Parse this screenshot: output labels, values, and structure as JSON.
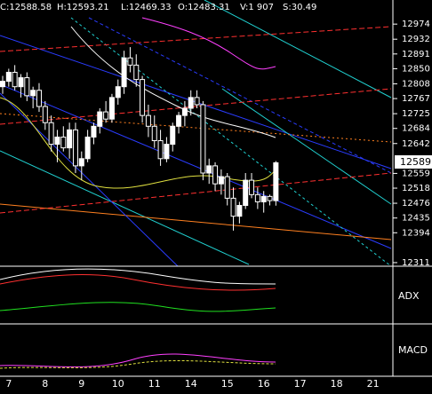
{
  "chart_data": {
    "type": "candlestick",
    "header": [
      "C:12588.58",
      "H:12593.21",
      "L:12469.33",
      "O:12483.31",
      "V:1 907",
      "S:30.49"
    ],
    "last_label": "12589",
    "panels": [
      "ADX",
      "MACD"
    ],
    "categories": [
      null,
      "7",
      null,
      null,
      null,
      null,
      null,
      "8",
      null,
      null,
      null,
      null,
      null,
      "9",
      null,
      null,
      null,
      null,
      null,
      "10",
      null,
      null,
      null,
      null,
      null,
      "11",
      null,
      null,
      null,
      null,
      null,
      "14",
      null,
      null,
      null,
      null,
      null,
      "15",
      null,
      null,
      null,
      null,
      null,
      "16",
      null,
      null,
      null,
      null,
      null,
      "17",
      null,
      null,
      null,
      null,
      null,
      "18",
      null,
      null,
      null,
      null,
      null,
      "21",
      null
    ],
    "open": [
      12800,
      12815,
      12840,
      12800,
      12825,
      12775,
      12790,
      12745,
      12700,
      12640,
      12660,
      12630,
      12680,
      12580,
      12600,
      12660,
      12690,
      12730,
      12710,
      12770,
      12800,
      12880,
      12860,
      12820,
      12720,
      12690,
      12650,
      12600,
      12640,
      12690,
      12720,
      12740,
      12770,
      12750,
      12560,
      12580,
      12530,
      12550,
      12490,
      12440,
      12470,
      12540,
      12500,
      12480,
      12495,
      12483.31,
      null,
      null,
      null,
      null,
      null,
      null,
      null,
      null,
      null,
      null,
      null,
      null,
      null,
      null,
      null,
      null,
      null
    ],
    "high": [
      12830,
      12850,
      12860,
      12835,
      12840,
      12800,
      12810,
      12760,
      12720,
      12680,
      12690,
      12700,
      12700,
      12620,
      12680,
      12700,
      12740,
      12760,
      12780,
      12820,
      12900,
      12910,
      12890,
      12830,
      12750,
      12720,
      12680,
      12660,
      12700,
      12730,
      12760,
      12790,
      12790,
      12760,
      12600,
      12590,
      12570,
      12560,
      12520,
      12480,
      12560,
      12560,
      12520,
      12510,
      12500,
      12593.21,
      null,
      null,
      null,
      null,
      null,
      null,
      null,
      null,
      null,
      null,
      null,
      null,
      null,
      null,
      null,
      null,
      null
    ],
    "low": [
      12780,
      12800,
      12790,
      12770,
      12760,
      12740,
      12730,
      12680,
      12620,
      12590,
      12620,
      12600,
      12560,
      12540,
      12590,
      12640,
      12670,
      12700,
      12700,
      12750,
      12780,
      12840,
      12800,
      12700,
      12660,
      12630,
      12580,
      12590,
      12620,
      12670,
      12690,
      12720,
      12740,
      12540,
      12530,
      12510,
      12500,
      12470,
      12400,
      12420,
      12460,
      12490,
      12460,
      12450,
      12470,
      12469.33,
      null,
      null,
      null,
      null,
      null,
      null,
      null,
      null,
      null,
      null,
      null,
      null,
      null,
      null,
      null,
      null,
      null
    ],
    "close": [
      12815,
      12840,
      12800,
      12825,
      12775,
      12790,
      12745,
      12700,
      12640,
      12660,
      12630,
      12680,
      12580,
      12600,
      12660,
      12690,
      12730,
      12710,
      12770,
      12800,
      12880,
      12860,
      12820,
      12720,
      12690,
      12650,
      12600,
      12640,
      12690,
      12720,
      12740,
      12770,
      12750,
      12560,
      12580,
      12530,
      12550,
      12490,
      12440,
      12470,
      12540,
      12500,
      12480,
      12495,
      12483.31,
      12588.58,
      null,
      null,
      null,
      null,
      null,
      null,
      null,
      null,
      null,
      null,
      null,
      null,
      null,
      null,
      null,
      null,
      null
    ],
    "ylim": [
      12301,
      13041
    ],
    "yticks": [
      12974,
      12932,
      12891,
      12850,
      12808,
      12767,
      12725,
      12684,
      12642,
      12559,
      12518,
      12476,
      12435,
      12394,
      12311
    ],
    "colors": {
      "up": "#ffffff",
      "down": "#000000",
      "wick": "#ffffff"
    }
  }
}
